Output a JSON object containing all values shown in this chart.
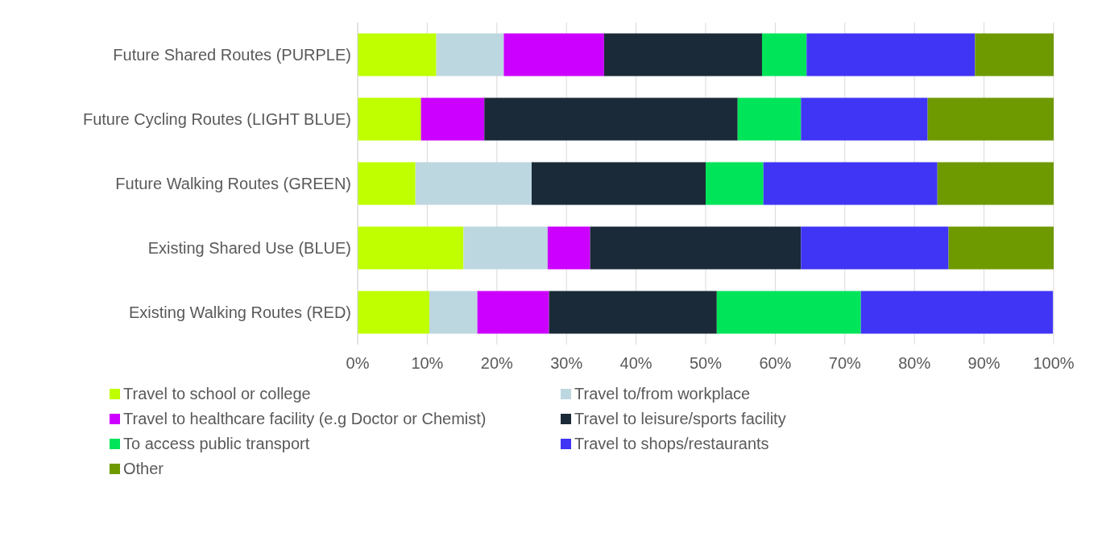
{
  "chart_data": {
    "type": "bar",
    "orientation": "horizontal",
    "stacked": true,
    "categories": [
      "Future Shared Routes (PURPLE)",
      "Future Cycling Routes (LIGHT BLUE)",
      "Future Walking Routes (GREEN)",
      "Existing Shared Use (BLUE)",
      "Existing Walking Routes (RED)"
    ],
    "series": [
      {
        "name": "Travel to school or college",
        "color": "#bfff00",
        "values": [
          11.3,
          9.1,
          8.3,
          15.2,
          10.3
        ]
      },
      {
        "name": "Travel to/from workplace",
        "color": "#bdd7e0",
        "values": [
          9.7,
          0,
          16.7,
          12.1,
          6.9
        ]
      },
      {
        "name": "Travel to healthcare facility (e.g Doctor or Chemist)",
        "color": "#cc00ff",
        "values": [
          14.4,
          9.1,
          0,
          6.1,
          10.3
        ]
      },
      {
        "name": "Travel to leisure/sports facility",
        "color": "#1b2a38",
        "values": [
          22.7,
          36.4,
          25,
          30.3,
          24.1
        ]
      },
      {
        "name": "To access public transport",
        "color": "#00e45a",
        "values": [
          6.4,
          9.1,
          8.3,
          0,
          20.7
        ]
      },
      {
        "name": "Travel to shops/restaurants",
        "color": "#4035f5",
        "values": [
          24.2,
          18.2,
          25,
          21.2,
          27.6
        ]
      },
      {
        "name": "Other",
        "color": "#6e9a00",
        "values": [
          11.3,
          18.2,
          16.7,
          15.2,
          0
        ]
      }
    ],
    "xlim": [
      0,
      100
    ],
    "xticks": [
      {
        "value": 0,
        "label": "0%"
      },
      {
        "value": 10,
        "label": "10%"
      },
      {
        "value": 20,
        "label": "20%"
      },
      {
        "value": 30,
        "label": "30%"
      },
      {
        "value": 40,
        "label": "40%"
      },
      {
        "value": 50,
        "label": "50%"
      },
      {
        "value": 60,
        "label": "60%"
      },
      {
        "value": 70,
        "label": "70%"
      },
      {
        "value": 80,
        "label": "80%"
      },
      {
        "value": 90,
        "label": "90%"
      },
      {
        "value": 100,
        "label": "100%"
      }
    ],
    "grid": "x",
    "legend": "bottom"
  }
}
